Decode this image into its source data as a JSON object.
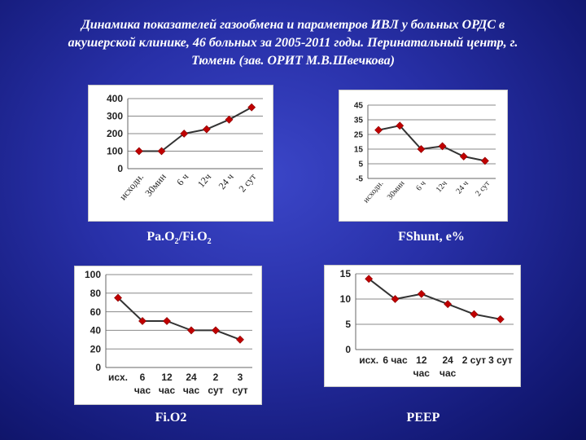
{
  "title_lines": [
    "Динамика показателей газообмена и параметров ИВЛ у больных ОРДС в",
    "акушерской клинике, 46 больных за 2005-2011 годы. Перинатальный центр, г.",
    "Тюмень (зав. ОРИТ М.В.Швечкова)"
  ],
  "captions": {
    "pao2": {
      "main": "Pa.O",
      "sub1": "2",
      "mid": "/Fi.O",
      "sub2": "2"
    },
    "fshunt": "FShunt, е%",
    "fio2": "Fi.O2",
    "peep": "PEEP"
  },
  "colors": {
    "line": "#333333",
    "marker": "#c00000",
    "grid": "#888888",
    "panel": "#ffffff"
  },
  "chart_data": [
    {
      "id": "pao2",
      "type": "line",
      "categories": [
        "исходн.",
        "30мин",
        "6 ч",
        "12ч",
        "24 ч",
        "2 сут"
      ],
      "values": [
        100,
        100,
        200,
        225,
        280,
        350
      ],
      "ylim": [
        0,
        400
      ],
      "yticks": [
        "0",
        "100",
        "200",
        "300",
        "400"
      ],
      "grid": true,
      "tick_rotation": -50
    },
    {
      "id": "fshunt",
      "type": "line",
      "categories": [
        "исходн.",
        "30мин",
        "6 ч",
        "12ч",
        "24 ч",
        "2 сут"
      ],
      "values": [
        28,
        31,
        15,
        17,
        10,
        7
      ],
      "ylim": [
        -5,
        45
      ],
      "yticks": [
        "-5",
        "5",
        "15",
        "25",
        "35",
        "45"
      ],
      "grid": true,
      "tick_rotation": -50
    },
    {
      "id": "fio2",
      "type": "line",
      "categories": [
        [
          "исх.",
          ""
        ],
        [
          "6",
          "час"
        ],
        [
          "12",
          "час"
        ],
        [
          "24",
          "час"
        ],
        [
          "2",
          "сут"
        ],
        [
          "3",
          "сут"
        ]
      ],
      "values": [
        75,
        50,
        50,
        40,
        40,
        30
      ],
      "ylim": [
        0,
        100
      ],
      "yticks": [
        "0",
        "20",
        "40",
        "60",
        "80",
        "100"
      ],
      "grid": true,
      "tick_rotation": 0
    },
    {
      "id": "peep",
      "type": "line",
      "categories": [
        [
          "исх.",
          ""
        ],
        [
          "6 час",
          ""
        ],
        [
          "12",
          "час"
        ],
        [
          "24",
          "час"
        ],
        [
          "2 сут",
          ""
        ],
        [
          "3 сут",
          ""
        ]
      ],
      "values": [
        14,
        10,
        11,
        9,
        7,
        6
      ],
      "ylim": [
        0,
        15
      ],
      "yticks": [
        "0",
        "5",
        "10",
        "15"
      ],
      "grid": true,
      "tick_rotation": 0
    }
  ]
}
